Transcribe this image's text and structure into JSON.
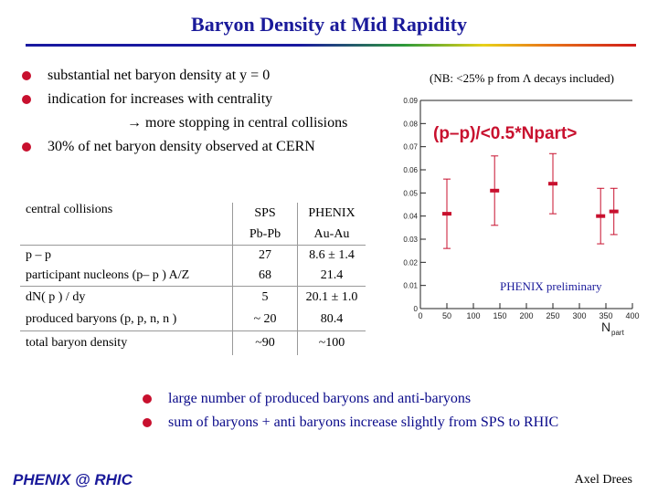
{
  "title": "Baryon Density at Mid Rapidity",
  "bullets": [
    "substantial net baryon density at y = 0",
    "indication for increases with centrality",
    "→ more stopping in central collisions",
    "30% of net baryon density observed at CERN"
  ],
  "note": "(NB: <25% p from Λ decays included)",
  "table": {
    "header": [
      "central collisions",
      "SPS",
      "PHENIX"
    ],
    "header2": [
      "",
      "Pb-Pb",
      "Au-Au"
    ],
    "rows": [
      {
        "label1": "p – p",
        "label2": "participant nucleons (p– p ) A/Z",
        "sps1": "27",
        "sps2": "68",
        "phx1": "8.6 ± 1.4",
        "phx2": "21.4"
      },
      {
        "label1": "dN( p ) / dy",
        "label2": "produced baryons (p, p, n, n )",
        "sps1": "5",
        "sps2": "~ 20",
        "phx1": "20.1 ± 1.0",
        "phx2": "80.4"
      },
      {
        "label1": "total baryon density",
        "label2": "",
        "sps1": "~90",
        "sps2": "",
        "phx1": "~100",
        "phx2": ""
      }
    ]
  },
  "chart_data": {
    "type": "scatter",
    "title": "(p–p)/<0.5*Npart>",
    "xlabel": "N",
    "xlabel_sub": "part",
    "xlim": [
      0,
      400
    ],
    "ylim": [
      0,
      0.09
    ],
    "xticks": [
      "0",
      "50",
      "100",
      "150",
      "200",
      "250",
      "300",
      "350",
      "400"
    ],
    "yticks": [
      "0",
      "0.01",
      "0.02",
      "0.03",
      "0.04",
      "0.05",
      "0.06",
      "0.07",
      "0.08",
      "0.09"
    ],
    "points": [
      {
        "x": 50,
        "y": 0.041,
        "err": 0.015
      },
      {
        "x": 140,
        "y": 0.051,
        "err": 0.015
      },
      {
        "x": 250,
        "y": 0.054,
        "err": 0.013
      },
      {
        "x": 340,
        "y": 0.04,
        "err": 0.012
      },
      {
        "x": 365,
        "y": 0.042,
        "err": 0.01
      }
    ],
    "caption": "PHENIX preliminary",
    "colors": {
      "points": "#c8102e",
      "title": "#c8102e"
    }
  },
  "bottom_bullets": [
    "large number of produced baryons and anti-baryons",
    "sum of baryons + anti baryons increase slightly from SPS to RHIC"
  ],
  "footer": {
    "logo": "PHENIX @ RHIC",
    "author": "Axel Drees"
  }
}
